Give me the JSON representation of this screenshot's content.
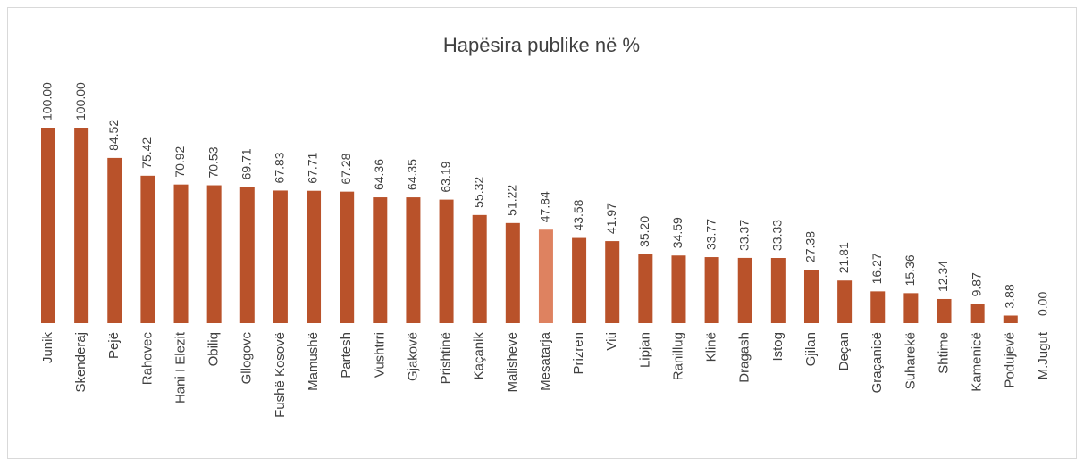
{
  "chart_data": {
    "type": "bar",
    "title": "Hapësira publike në %",
    "categories": [
      "Junik",
      "Skenderaj",
      "Pejë",
      "Rahovec",
      "Hani I Elezit",
      "Obiliq",
      "Gllogovc",
      "Fushë Kosovë",
      "Mamushë",
      "Partesh",
      "Vushtrri",
      "Gjakovë",
      "Prishtinë",
      "Kaçanik",
      "Malishevë",
      "Mesatarja",
      "Prizren",
      "Viti",
      "Lipjan",
      "Ranillug",
      "Klinë",
      "Dragash",
      "Istog",
      "Gjilan",
      "Deçan",
      "Graçanicë",
      "Suharekë",
      "Shtime",
      "Kamenicë",
      "Podujevë",
      "M.Jugut"
    ],
    "values": [
      100,
      100,
      84.52,
      75.42,
      70.92,
      70.53,
      69.71,
      67.83,
      67.71,
      67.28,
      64.36,
      64.35,
      63.19,
      55.32,
      51.22,
      47.84,
      43.58,
      41.97,
      35.2,
      34.59,
      33.77,
      33.37,
      33.33,
      27.38,
      21.81,
      16.27,
      15.36,
      12.34,
      9.87,
      3.88,
      0
    ],
    "value_labels": [
      "100.00",
      "100.00",
      "84.52",
      "75.42",
      "70.92",
      "70.53",
      "69.71",
      "67.83",
      "67.71",
      "67.28",
      "64.36",
      "64.35",
      "63.19",
      "55.32",
      "51.22",
      "47.84",
      "43.58",
      "41.97",
      "35.20",
      "34.59",
      "33.77",
      "33.37",
      "33.33",
      "27.38",
      "21.81",
      "16.27",
      "15.36",
      "12.34",
      "9.87",
      "3.88",
      "0.00"
    ],
    "colors": [
      "#b9522a",
      "#b9522a",
      "#b9522a",
      "#b9522a",
      "#b9522a",
      "#b9522a",
      "#b9522a",
      "#b9522a",
      "#b9522a",
      "#b9522a",
      "#b9522a",
      "#b9522a",
      "#b9522a",
      "#b9522a",
      "#b9522a",
      "#de8260",
      "#b9522a",
      "#b9522a",
      "#b9522a",
      "#b9522a",
      "#b9522a",
      "#b9522a",
      "#b9522a",
      "#b9522a",
      "#b9522a",
      "#b9522a",
      "#b9522a",
      "#b9522a",
      "#b9522a",
      "#b9522a",
      "#b9522a"
    ]
  }
}
